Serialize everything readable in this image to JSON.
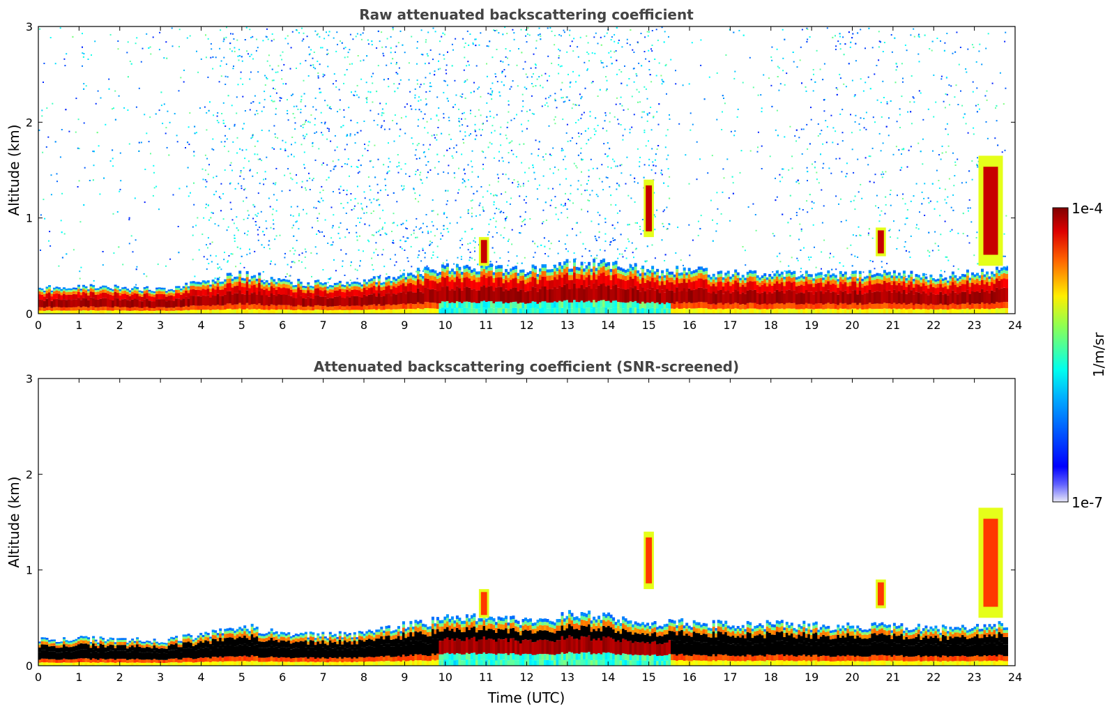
{
  "chart_data": [
    {
      "type": "heatmap",
      "title": "Raw attenuated backscattering coefficient",
      "xlabel": "",
      "ylabel": "Altitude (km)",
      "xlim": [
        0,
        24
      ],
      "ylim": [
        0,
        3
      ],
      "xticks": [
        "0",
        "1",
        "2",
        "3",
        "4",
        "5",
        "6",
        "7",
        "8",
        "9",
        "10",
        "11",
        "12",
        "13",
        "14",
        "15",
        "16",
        "17",
        "18",
        "19",
        "20",
        "21",
        "22",
        "23",
        "24"
      ],
      "yticks": [
        "0",
        "1",
        "2",
        "3"
      ],
      "layer_top_km": {
        "time_h": [
          0,
          1,
          2,
          3,
          4,
          5,
          6,
          7,
          8,
          9,
          10,
          11,
          12,
          13,
          14,
          15,
          16,
          17,
          18,
          19,
          20,
          21,
          22,
          23,
          23.8
        ],
        "top": [
          0.27,
          0.28,
          0.27,
          0.26,
          0.32,
          0.42,
          0.33,
          0.32,
          0.33,
          0.42,
          0.48,
          0.5,
          0.45,
          0.52,
          0.52,
          0.45,
          0.45,
          0.42,
          0.43,
          0.42,
          0.4,
          0.42,
          0.38,
          0.42,
          0.45
        ]
      },
      "cloud_features": [
        {
          "time_h": 15.0,
          "base_km": 0.8,
          "top_km": 1.4
        },
        {
          "time_h": 10.95,
          "base_km": 0.5,
          "top_km": 0.8
        },
        {
          "time_h": 20.7,
          "base_km": 0.6,
          "top_km": 0.9
        },
        {
          "time_h": 23.4,
          "base_km": 0.5,
          "top_km": 1.65
        }
      ],
      "noise": true
    },
    {
      "type": "heatmap",
      "title": "Attenuated backscattering coefficient (SNR-screened)",
      "xlabel": "Time (UTC)",
      "ylabel": "Altitude (km)",
      "xlim": [
        0,
        24
      ],
      "ylim": [
        0,
        3
      ],
      "xticks": [
        "0",
        "1",
        "2",
        "3",
        "4",
        "5",
        "6",
        "7",
        "8",
        "9",
        "10",
        "11",
        "12",
        "13",
        "14",
        "15",
        "16",
        "17",
        "18",
        "19",
        "20",
        "21",
        "22",
        "23",
        "24"
      ],
      "yticks": [
        "0",
        "1",
        "2",
        "3"
      ],
      "noise": false
    }
  ],
  "colorbar": {
    "max_label": "1e-4",
    "min_label": "1e-7",
    "unit_label": "1/m/sr",
    "scale": "log",
    "colormap": "jet"
  },
  "colors": {
    "low": "#0000ff",
    "mid": "#00ffff",
    "high": "#ff0000",
    "saturated": "#7f0000",
    "screened_core": "#000000"
  }
}
